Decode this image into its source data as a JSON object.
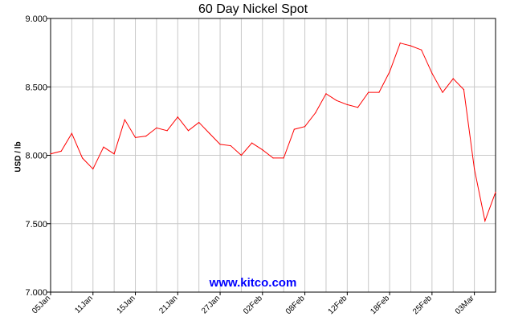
{
  "chart_data": {
    "type": "line",
    "title": "60 Day Nickel Spot",
    "ylabel": "USD / lb",
    "xlabel": "",
    "ylim": [
      7.0,
      9.0
    ],
    "y_ticks": [
      "7.000",
      "7.500",
      "8.000",
      "8.500",
      "9.000"
    ],
    "x_tick_labels": [
      "05Jan",
      "11Jan",
      "15Jan",
      "21Jan",
      "27Jan",
      "02Feb",
      "08Feb",
      "12Feb",
      "18Feb",
      "25Feb",
      "03Mar"
    ],
    "grid": true,
    "line_color": "#ff0000",
    "values": [
      8.01,
      8.03,
      8.16,
      7.98,
      7.9,
      8.06,
      8.01,
      8.26,
      8.13,
      8.14,
      8.2,
      8.18,
      8.28,
      8.18,
      8.24,
      8.16,
      8.08,
      8.07,
      8.0,
      8.09,
      8.04,
      7.98,
      7.98,
      8.19,
      8.21,
      8.31,
      8.45,
      8.4,
      8.37,
      8.35,
      8.46,
      8.46,
      8.61,
      8.82,
      8.8,
      8.77,
      8.6,
      8.46,
      8.56,
      8.48,
      7.9,
      7.52,
      7.73
    ]
  },
  "watermark": "www.kitco.com",
  "watermark_color": "#0000ff"
}
